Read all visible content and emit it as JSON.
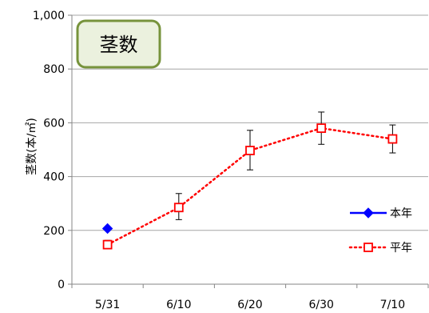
{
  "chart_data": {
    "type": "line",
    "title": "茎数",
    "ylabel": "茎数(本/㎡)",
    "xlabel": "",
    "categories": [
      "5/31",
      "6/10",
      "6/20",
      "6/30",
      "7/10"
    ],
    "ylim": [
      0,
      1000
    ],
    "yticks": [
      0,
      200,
      400,
      600,
      800,
      1000
    ],
    "ytick_labels": [
      "0",
      "200",
      "400",
      "600",
      "800",
      "1,000"
    ],
    "grid": true,
    "legend_position": "bottom-right",
    "series": [
      {
        "name": "本年",
        "color": "#0000FF",
        "marker": "diamond",
        "line": "solid",
        "values": [
          207,
          null,
          null,
          null,
          null
        ]
      },
      {
        "name": "平年",
        "color": "#FF0000",
        "marker": "square-open",
        "line": "dotted",
        "values": [
          147,
          285,
          497,
          580,
          540
        ],
        "error_low": [
          135,
          240,
          425,
          520,
          488
        ],
        "error_high": [
          163,
          337,
          572,
          640,
          592
        ]
      }
    ],
    "title_box_fill": "#EBF1DE",
    "title_box_stroke": "#77933C"
  }
}
